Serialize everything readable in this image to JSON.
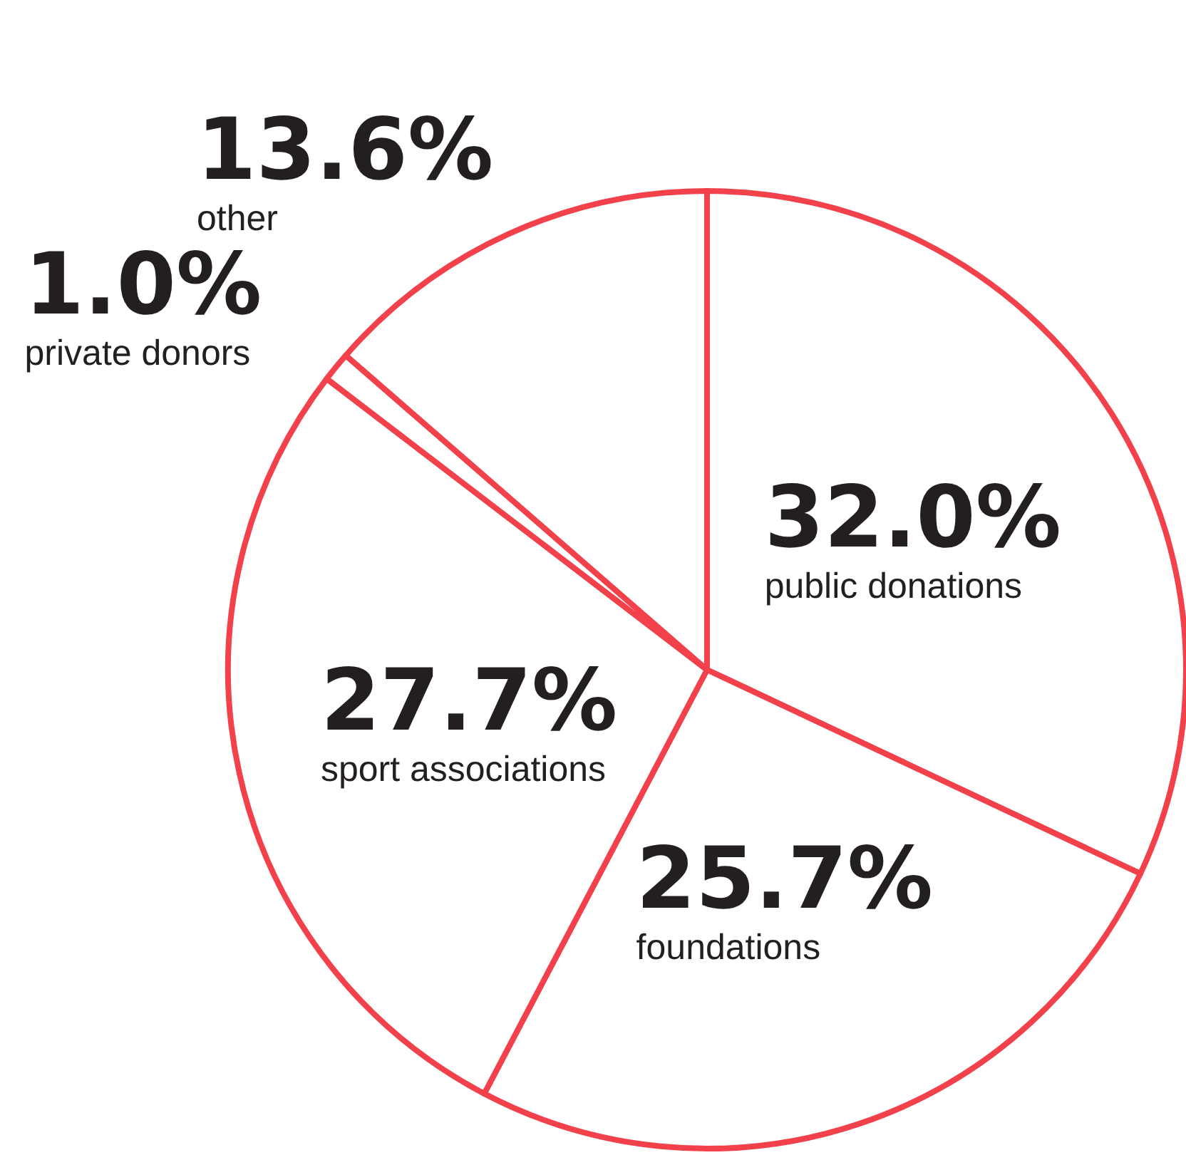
{
  "chart_data": {
    "type": "pie",
    "categories": [
      "public donations",
      "foundations",
      "sport associations",
      "private donors",
      "other"
    ],
    "values": [
      32.0,
      25.7,
      27.7,
      1.0,
      13.6
    ],
    "value_labels": [
      "32.0%",
      "25.7%",
      "27.7%",
      "1.0%",
      "13.6%"
    ],
    "colors": [
      "#ffffff",
      "#ffffff",
      "#ffffff",
      "#ffffff",
      "#ffffff"
    ],
    "legend": false
  }
}
